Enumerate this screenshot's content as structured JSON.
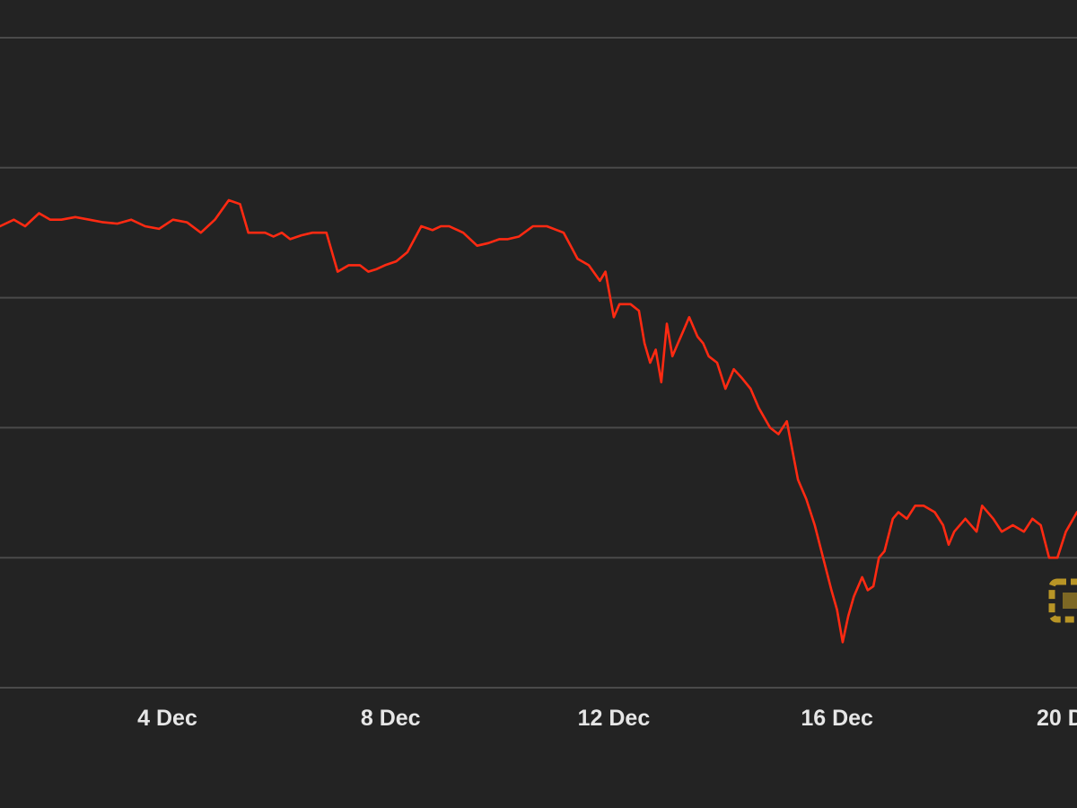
{
  "colors": {
    "background": "#232323",
    "gridline": "#4a4a4a",
    "series_line": "#ff2a12",
    "tick_label": "#e6e6e6",
    "logo": "#c9a227"
  },
  "chart_data": {
    "type": "line",
    "title": "",
    "xlabel": "",
    "ylabel": "",
    "grid": true,
    "gridlines_count": 6,
    "xlim": [
      1.0,
      20.3
    ],
    "ylim": [
      0,
      5
    ],
    "x_ticks": [
      4,
      8,
      12,
      16,
      20
    ],
    "x_tick_labels": [
      "4 Dec",
      "8 Dec",
      "12 Dec",
      "16 Dec",
      "20 D"
    ],
    "series": [
      {
        "x": [
          1.0,
          1.25,
          1.45,
          1.7,
          1.9,
          2.1,
          2.35,
          2.6,
          2.85,
          3.1,
          3.35,
          3.6,
          3.85,
          4.1,
          4.35,
          4.6,
          4.85,
          5.1,
          5.3,
          5.45,
          5.6,
          5.75,
          5.9,
          6.05,
          6.2,
          6.4,
          6.6,
          6.85,
          7.05,
          7.25,
          7.45,
          7.6,
          7.75,
          7.9,
          8.1,
          8.3,
          8.55,
          8.75,
          8.9,
          9.05,
          9.3,
          9.55,
          9.75,
          9.95,
          10.1,
          10.3,
          10.55,
          10.8,
          11.1,
          11.35,
          11.55,
          11.75,
          11.85,
          12.0,
          12.1,
          12.3,
          12.45,
          12.55,
          12.65,
          12.75,
          12.85,
          12.95,
          13.05,
          13.15,
          13.25,
          13.35,
          13.5,
          13.6,
          13.7,
          13.85,
          14.0,
          14.15,
          14.3,
          14.45,
          14.6,
          14.8,
          14.95,
          15.1,
          15.3,
          15.45,
          15.6,
          15.75,
          15.9,
          16.0,
          16.1,
          16.2,
          16.3,
          16.45,
          16.55,
          16.65,
          16.75,
          16.85,
          17.0,
          17.1,
          17.25,
          17.4,
          17.55,
          17.75,
          17.9,
          18.0,
          18.1,
          18.3,
          18.5,
          18.6,
          18.8,
          18.95,
          19.15,
          19.35,
          19.5,
          19.65,
          19.8,
          19.95,
          20.1,
          20.3
        ],
        "values": [
          3.55,
          3.6,
          3.55,
          3.65,
          3.6,
          3.6,
          3.62,
          3.6,
          3.58,
          3.57,
          3.6,
          3.55,
          3.53,
          3.6,
          3.58,
          3.5,
          3.6,
          3.75,
          3.72,
          3.5,
          3.5,
          3.5,
          3.47,
          3.5,
          3.45,
          3.48,
          3.5,
          3.5,
          3.2,
          3.25,
          3.25,
          3.2,
          3.22,
          3.25,
          3.28,
          3.35,
          3.55,
          3.52,
          3.55,
          3.55,
          3.5,
          3.4,
          3.42,
          3.45,
          3.45,
          3.47,
          3.55,
          3.55,
          3.5,
          3.3,
          3.25,
          3.13,
          3.2,
          2.85,
          2.95,
          2.95,
          2.9,
          2.65,
          2.5,
          2.6,
          2.35,
          2.8,
          2.55,
          2.65,
          2.75,
          2.85,
          2.7,
          2.65,
          2.55,
          2.5,
          2.3,
          2.45,
          2.38,
          2.3,
          2.15,
          2.0,
          1.95,
          2.05,
          1.6,
          1.45,
          1.25,
          1.0,
          0.75,
          0.6,
          0.35,
          0.55,
          0.7,
          0.85,
          0.75,
          0.78,
          1.0,
          1.05,
          1.3,
          1.35,
          1.3,
          1.4,
          1.4,
          1.35,
          1.25,
          1.1,
          1.2,
          1.3,
          1.2,
          1.4,
          1.3,
          1.2,
          1.25,
          1.2,
          1.3,
          1.25,
          1.0,
          1.0,
          1.2,
          1.35
        ]
      }
    ]
  }
}
